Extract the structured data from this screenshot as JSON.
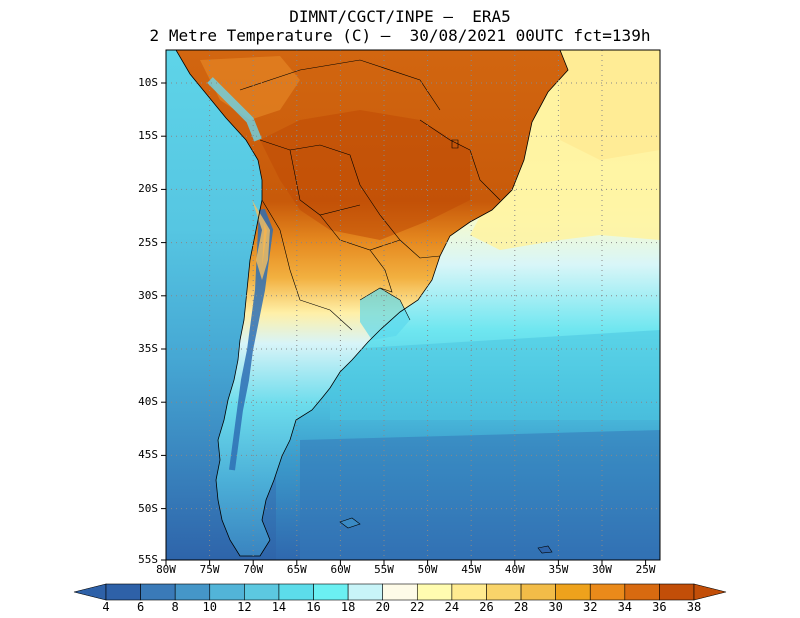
{
  "header": {
    "line1": "DIMNT/CGCT/INPE –  ERA5",
    "line2": "2 Metre Temperature (C) –  30/08/2021 00UTC fct=139h"
  },
  "map": {
    "region": "South America",
    "lat_ticks": [
      "10S",
      "15S",
      "20S",
      "25S",
      "30S",
      "35S",
      "40S",
      "45S",
      "50S",
      "55S"
    ],
    "lon_ticks": [
      "80W",
      "75W",
      "70W",
      "65W",
      "60W",
      "55W",
      "50W",
      "45W",
      "40W",
      "35W",
      "30W",
      "25W"
    ],
    "grid": "dotted"
  },
  "colorbar": {
    "labels": [
      "4",
      "6",
      "8",
      "10",
      "12",
      "14",
      "16",
      "18",
      "20",
      "22",
      "24",
      "26",
      "28",
      "30",
      "32",
      "34",
      "36",
      "38"
    ],
    "colors": [
      "#2e61a8",
      "#3a7ab8",
      "#4596c8",
      "#52b4d8",
      "#5cc8e0",
      "#5cdcea",
      "#6bf0f2",
      "#c8f4f8",
      "#fefbe8",
      "#fffcb0",
      "#ffeb90",
      "#f9d46a",
      "#f2bc48",
      "#eea21c",
      "#ea8a1a",
      "#d86a10",
      "#c24e08"
    ],
    "low_color": "#2e61a8",
    "high_color": "#c24e08"
  }
}
